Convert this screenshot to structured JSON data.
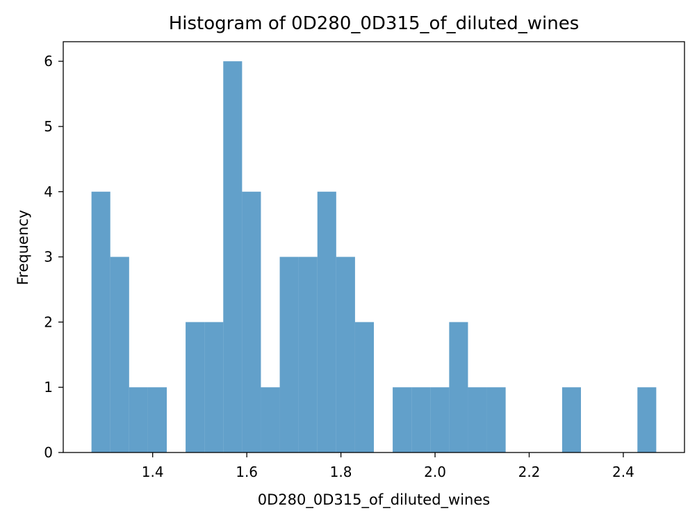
{
  "chart_data": {
    "type": "bar",
    "subtype": "histogram",
    "title": "Histogram of 0D280_0D315_of_diluted_wines",
    "xlabel": "0D280_0D315_of_diluted_wines",
    "ylabel": "Frequency",
    "xlim": [
      1.21,
      2.53
    ],
    "ylim": [
      0,
      6.3
    ],
    "xticks": [
      1.4,
      1.6,
      1.8,
      2.0,
      2.2,
      2.4
    ],
    "xtick_labels": [
      "1.4",
      "1.6",
      "1.8",
      "2.0",
      "2.2",
      "2.4"
    ],
    "yticks": [
      0,
      1,
      2,
      3,
      4,
      5,
      6
    ],
    "ytick_labels": [
      "0",
      "1",
      "2",
      "3",
      "4",
      "5",
      "6"
    ],
    "bin_start": 1.27,
    "bin_width": 0.04,
    "bins": [
      {
        "x0": 1.27,
        "x1": 1.31,
        "count": 4
      },
      {
        "x0": 1.31,
        "x1": 1.35,
        "count": 3
      },
      {
        "x0": 1.35,
        "x1": 1.39,
        "count": 1
      },
      {
        "x0": 1.39,
        "x1": 1.43,
        "count": 1
      },
      {
        "x0": 1.43,
        "x1": 1.47,
        "count": 0
      },
      {
        "x0": 1.47,
        "x1": 1.51,
        "count": 2
      },
      {
        "x0": 1.51,
        "x1": 1.55,
        "count": 2
      },
      {
        "x0": 1.55,
        "x1": 1.59,
        "count": 6
      },
      {
        "x0": 1.59,
        "x1": 1.63,
        "count": 4
      },
      {
        "x0": 1.63,
        "x1": 1.67,
        "count": 1
      },
      {
        "x0": 1.67,
        "x1": 1.71,
        "count": 3
      },
      {
        "x0": 1.71,
        "x1": 1.75,
        "count": 3
      },
      {
        "x0": 1.75,
        "x1": 1.79,
        "count": 4
      },
      {
        "x0": 1.79,
        "x1": 1.83,
        "count": 3
      },
      {
        "x0": 1.83,
        "x1": 1.87,
        "count": 2
      },
      {
        "x0": 1.87,
        "x1": 1.91,
        "count": 0
      },
      {
        "x0": 1.91,
        "x1": 1.95,
        "count": 1
      },
      {
        "x0": 1.95,
        "x1": 1.99,
        "count": 1
      },
      {
        "x0": 1.99,
        "x1": 2.03,
        "count": 1
      },
      {
        "x0": 2.03,
        "x1": 2.07,
        "count": 2
      },
      {
        "x0": 2.07,
        "x1": 2.11,
        "count": 1
      },
      {
        "x0": 2.11,
        "x1": 2.15,
        "count": 1
      },
      {
        "x0": 2.15,
        "x1": 2.19,
        "count": 0
      },
      {
        "x0": 2.19,
        "x1": 2.23,
        "count": 0
      },
      {
        "x0": 2.23,
        "x1": 2.27,
        "count": 0
      },
      {
        "x0": 2.27,
        "x1": 2.31,
        "count": 1
      },
      {
        "x0": 2.31,
        "x1": 2.35,
        "count": 0
      },
      {
        "x0": 2.35,
        "x1": 2.39,
        "count": 0
      },
      {
        "x0": 2.39,
        "x1": 2.43,
        "count": 0
      },
      {
        "x0": 2.43,
        "x1": 2.47,
        "count": 1
      }
    ],
    "bar_color": "#1f77b4",
    "bar_opacity": 0.7,
    "grid": false,
    "legend": "none"
  }
}
